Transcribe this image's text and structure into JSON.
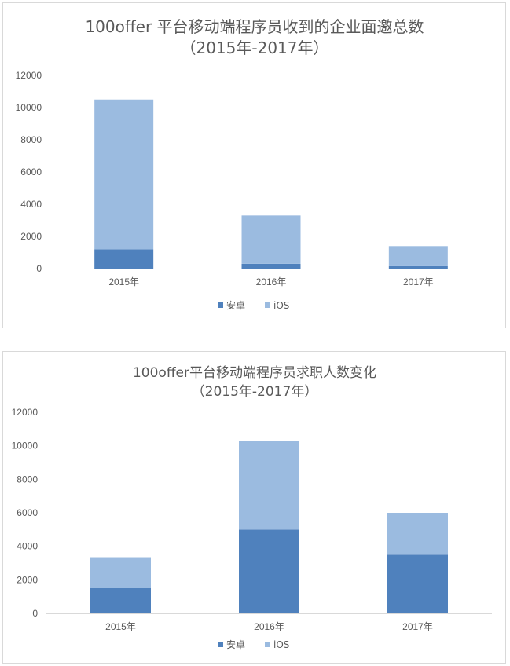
{
  "chart_data": [
    {
      "type": "bar",
      "stacked": true,
      "title": "100offer 平台移动端程序员收到的企业面邀总数",
      "subtitle": "（2015年-2017年）",
      "categories": [
        "2015年",
        "2016年",
        "2017年"
      ],
      "series": [
        {
          "name": "安卓",
          "values": [
            1200,
            300,
            150
          ]
        },
        {
          "name": "iOS",
          "values": [
            9300,
            3000,
            1250
          ]
        }
      ],
      "ylim": [
        0,
        12000
      ],
      "yticks": [
        "0",
        "2000",
        "4000",
        "6000",
        "8000",
        "10000",
        "12000"
      ],
      "grid": false,
      "legend": "bottom",
      "colors": [
        "#4f81bd",
        "#9bbbe0"
      ]
    },
    {
      "type": "bar",
      "stacked": true,
      "title": "100offer平台移动端程序员求职人数变化",
      "subtitle": "（2015年-2017年）",
      "categories": [
        "2015年",
        "2016年",
        "2017年"
      ],
      "series": [
        {
          "name": "安卓",
          "values": [
            1500,
            5000,
            3500
          ]
        },
        {
          "name": "iOS",
          "values": [
            1850,
            5300,
            2500
          ]
        }
      ],
      "ylim": [
        0,
        12000
      ],
      "yticks": [
        "0",
        "2000",
        "4000",
        "6000",
        "8000",
        "10000",
        "12000"
      ],
      "grid": false,
      "legend": "bottom",
      "colors": [
        "#4f81bd",
        "#9bbbe0"
      ]
    }
  ]
}
